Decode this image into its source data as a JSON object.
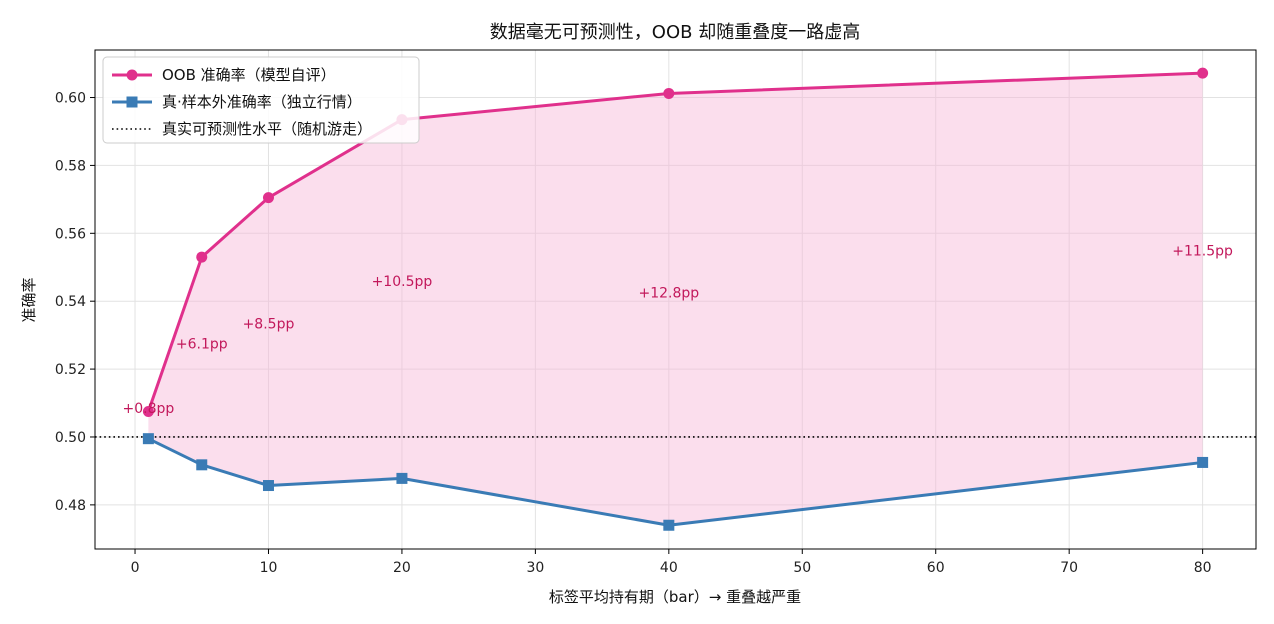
{
  "chart_data": {
    "type": "line",
    "title": "数据毫无可预测性，OOB 却随重叠度一路虚高",
    "xlabel": "标签平均持有期（bar）→ 重叠越严重",
    "ylabel": "准确率",
    "xlim": [
      -3,
      84
    ],
    "ylim": [
      0.467,
      0.614
    ],
    "xticks": [
      0,
      10,
      20,
      30,
      40,
      50,
      60,
      70,
      80
    ],
    "yticks": [
      0.48,
      0.5,
      0.52,
      0.54,
      0.56,
      0.58,
      0.6
    ],
    "grid": true,
    "legend_position": "top-left",
    "series": [
      {
        "name": "OOB 准确率（模型自评）",
        "marker": "circle",
        "color": "#e0308c",
        "x": [
          1,
          5,
          10,
          20,
          40,
          80
        ],
        "y": [
          0.5075,
          0.553,
          0.5705,
          0.5935,
          0.6012,
          0.6072
        ]
      },
      {
        "name": "真·样本外准确率（独立行情）",
        "marker": "square",
        "color": "#3a7bb5",
        "x": [
          1,
          5,
          10,
          20,
          40,
          80
        ],
        "y": [
          0.4995,
          0.4918,
          0.4857,
          0.4878,
          0.474,
          0.4925
        ]
      }
    ],
    "reference_line": {
      "name": "真实可预测性水平（随机游走）",
      "y": 0.5,
      "style": "dotted",
      "color": "#000000"
    },
    "fill_between": {
      "color": "#f7b6d6"
    },
    "annotations": [
      {
        "text": "+0.8pp",
        "x": 1,
        "y": 0.5085
      },
      {
        "text": "+6.1pp",
        "x": 5,
        "y": 0.5275
      },
      {
        "text": "+8.5pp",
        "x": 10,
        "y": 0.5335
      },
      {
        "text": "+10.5pp",
        "x": 20,
        "y": 0.546
      },
      {
        "text": "+12.8pp",
        "x": 40,
        "y": 0.5425
      },
      {
        "text": "+11.5pp",
        "x": 80,
        "y": 0.555
      }
    ],
    "annotation_color": "#c2185b"
  }
}
